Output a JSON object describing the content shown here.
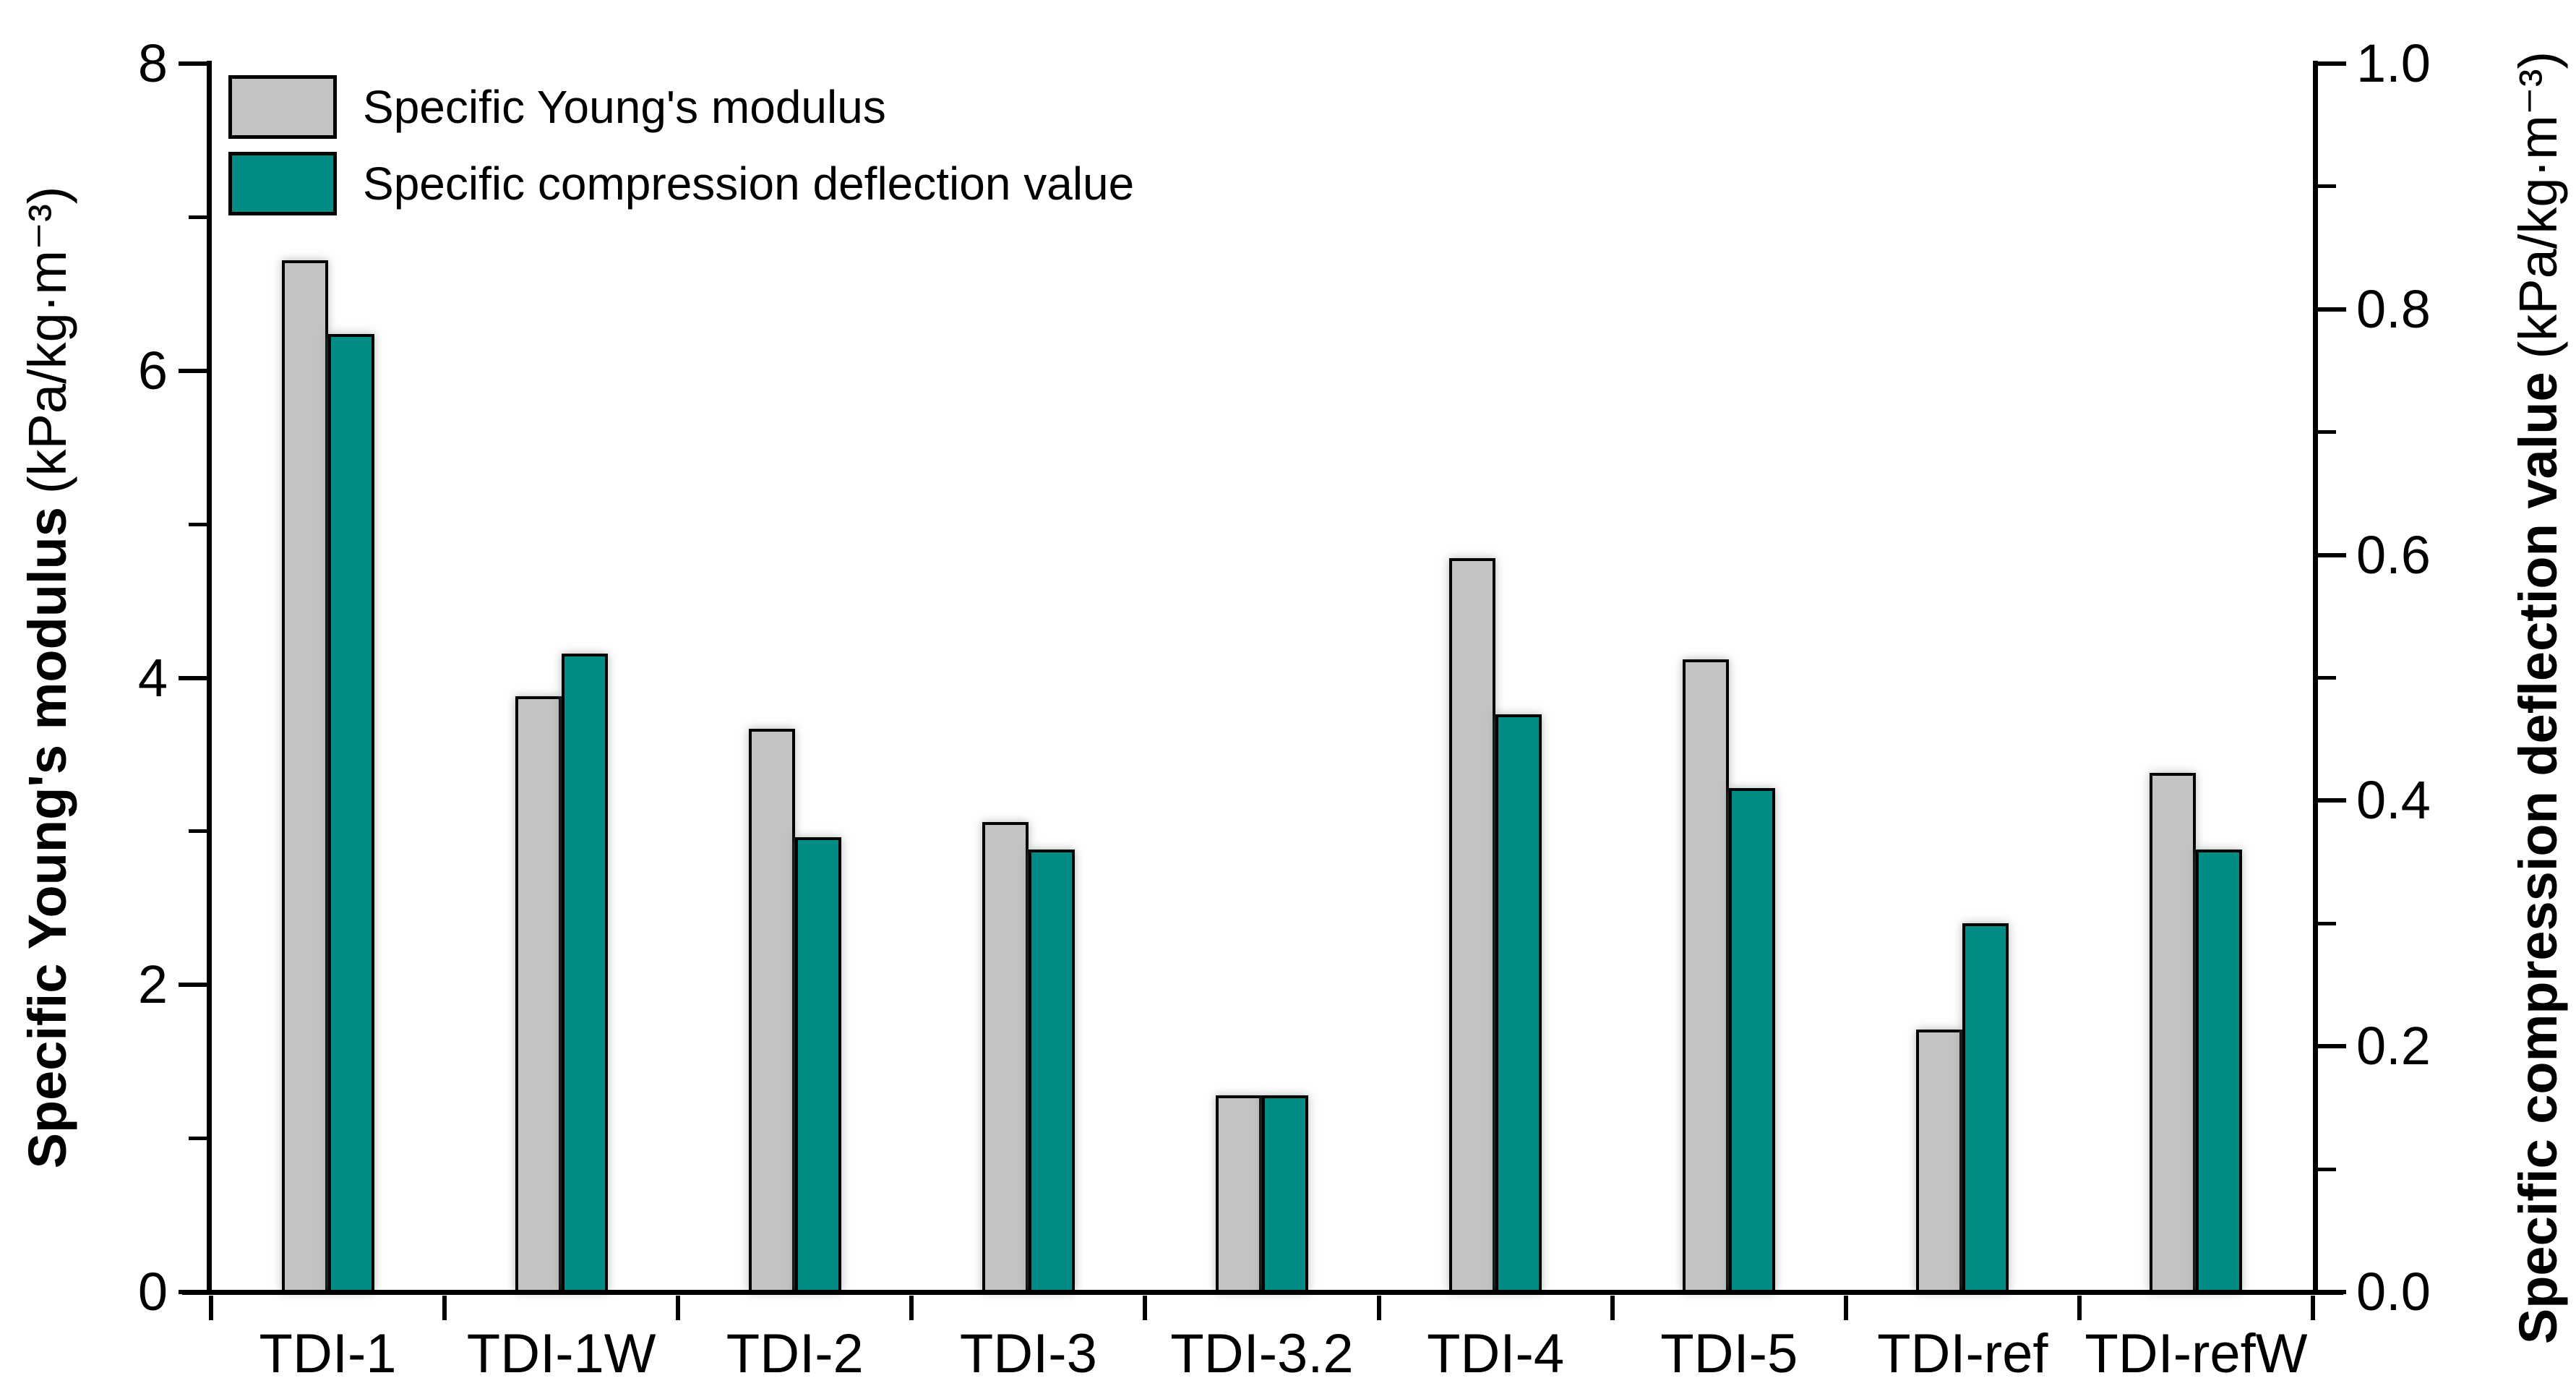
{
  "figure": {
    "background": "#ffffff",
    "axis_color": "#000000"
  },
  "chart_data": {
    "type": "bar",
    "title": "",
    "grid": false,
    "background": "#ffffff",
    "bar_outline": "#000000",
    "categories": [
      "TDI-1",
      "TDI-1W",
      "TDI-2",
      "TDI-3",
      "TDI-3.2",
      "TDI-4",
      "TDI-5",
      "TDI-ref",
      "TDI-refW"
    ],
    "series": [
      {
        "name": "Specific Young's modulus",
        "axis": "left",
        "color": "#c3c3c3",
        "values": [
          6.72,
          3.88,
          3.67,
          3.06,
          1.28,
          4.78,
          4.12,
          1.71,
          3.38
        ]
      },
      {
        "name": "Specific compression deflection value",
        "axis": "right",
        "color": "#008b85",
        "values": [
          0.78,
          0.52,
          0.37,
          0.36,
          0.16,
          0.47,
          0.41,
          0.3,
          0.36
        ]
      }
    ],
    "axes": {
      "left": {
        "label": "Specific Young's modulus",
        "unit": "(kPa/kg·m⁻³)",
        "lim": [
          0,
          8
        ],
        "major_ticks": [
          0,
          2,
          4,
          6,
          8
        ],
        "tick_labels": [
          "0",
          "2",
          "4",
          "6",
          "8"
        ],
        "minor_ticks": [
          1,
          3,
          5,
          7
        ]
      },
      "right": {
        "label": "Specific compression deflection value",
        "unit": "(kPa/kg·m⁻³)",
        "lim": [
          0,
          1
        ],
        "major_ticks": [
          0,
          0.2,
          0.4,
          0.6,
          0.8,
          1.0
        ],
        "tick_labels": [
          "0.0",
          "0.2",
          "0.4",
          "0.6",
          "0.8",
          "1.0"
        ],
        "minor_ticks": [
          0.1,
          0.3,
          0.5,
          0.7,
          0.9
        ]
      }
    },
    "legend": {
      "position": "top-left",
      "items": [
        {
          "label": "Specific Young's modulus",
          "color": "#c3c3c3"
        },
        {
          "label": "Specific compression deflection value",
          "color": "#008b85"
        }
      ]
    }
  }
}
